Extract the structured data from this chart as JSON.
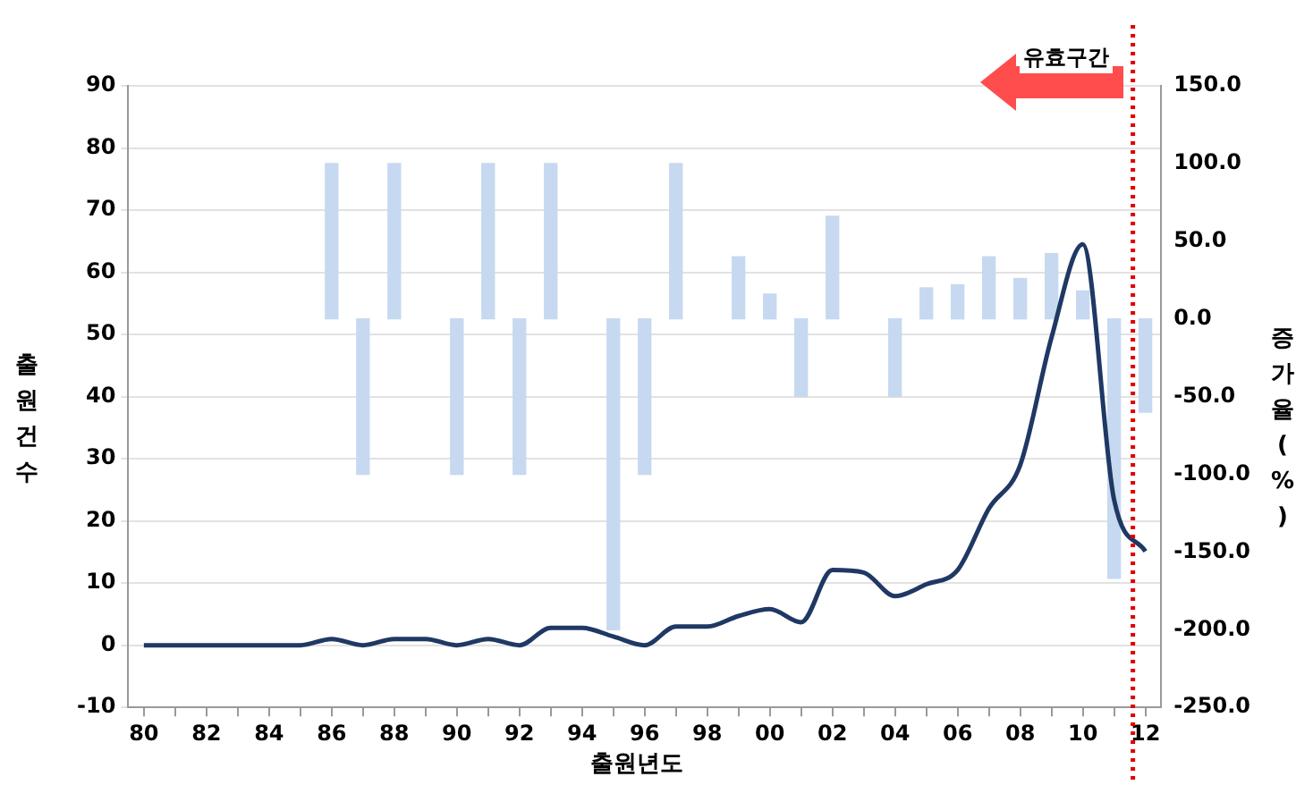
{
  "chart_data": {
    "type": "line",
    "xlabel": "출원년도",
    "ylabel": "출원건수",
    "y2label": "증가율(%)",
    "x": [
      1980,
      1981,
      1982,
      1983,
      1984,
      1985,
      1986,
      1987,
      1988,
      1989,
      1990,
      1991,
      1992,
      1993,
      1994,
      1995,
      1996,
      1997,
      1998,
      1999,
      2000,
      2001,
      2002,
      2003,
      2004,
      2005,
      2006,
      2007,
      2008,
      2009,
      2010,
      2011,
      2012
    ],
    "series": [
      {
        "type": "bar",
        "axis": "y2",
        "color": "#c6d9f0",
        "values": [
          null,
          null,
          null,
          null,
          null,
          null,
          100,
          -100,
          100,
          null,
          -100,
          100,
          -100,
          100,
          null,
          -200,
          -100,
          100,
          null,
          40,
          16,
          -50,
          66,
          null,
          -50,
          20,
          22,
          40,
          26,
          42,
          18,
          -167,
          -60
        ]
      },
      {
        "color": "#1f3864",
        "values": [
          0,
          0,
          0,
          0,
          0,
          0,
          1,
          0,
          1,
          1,
          0,
          1,
          0,
          2.8,
          2.8,
          1.4,
          0,
          3,
          3,
          4.7,
          5.8,
          3.7,
          12.1,
          11.7,
          7.9,
          9.8,
          12.1,
          22,
          29,
          49.5,
          64.5,
          23.4,
          15.1
        ]
      }
    ],
    "xlim": [
      1979.5,
      2012.5
    ],
    "xticks": [
      {
        "value": 1980,
        "label": "80"
      },
      {
        "value": 1981,
        "label": null
      },
      {
        "value": 1982,
        "label": "82"
      },
      {
        "value": 1983,
        "label": null
      },
      {
        "value": 1984,
        "label": "84"
      },
      {
        "value": 1985,
        "label": null
      },
      {
        "value": 1986,
        "label": "86"
      },
      {
        "value": 1987,
        "label": null
      },
      {
        "value": 1988,
        "label": "88"
      },
      {
        "value": 1989,
        "label": null
      },
      {
        "value": 1990,
        "label": "90"
      },
      {
        "value": 1991,
        "label": null
      },
      {
        "value": 1992,
        "label": "92"
      },
      {
        "value": 1993,
        "label": null
      },
      {
        "value": 1994,
        "label": "94"
      },
      {
        "value": 1995,
        "label": null
      },
      {
        "value": 1996,
        "label": "96"
      },
      {
        "value": 1997,
        "label": null
      },
      {
        "value": 1998,
        "label": "98"
      },
      {
        "value": 1999,
        "label": null
      },
      {
        "value": 2000,
        "label": "00"
      },
      {
        "value": 2001,
        "label": null
      },
      {
        "value": 2002,
        "label": "02"
      },
      {
        "value": 2003,
        "label": null
      },
      {
        "value": 2004,
        "label": "04"
      },
      {
        "value": 2005,
        "label": null
      },
      {
        "value": 2006,
        "label": "06"
      },
      {
        "value": 2007,
        "label": null
      },
      {
        "value": 2008,
        "label": "08"
      },
      {
        "value": 2009,
        "label": null
      },
      {
        "value": 2010,
        "label": "10"
      },
      {
        "value": 2011,
        "label": null
      },
      {
        "value": 2012,
        "label": "12"
      }
    ],
    "ylim": [
      -10,
      90
    ],
    "yticks": [
      -10,
      0,
      10,
      20,
      30,
      40,
      50,
      60,
      70,
      80,
      90
    ],
    "y2lim": [
      -250,
      150
    ],
    "y2ticks": [
      {
        "value": -250,
        "label": "-250.0"
      },
      {
        "value": -200,
        "label": "-200.0"
      },
      {
        "value": -150,
        "label": "-150.0"
      },
      {
        "value": -100,
        "label": "-100.0"
      },
      {
        "value": -50,
        "label": "-50.0"
      },
      {
        "value": 0,
        "label": "0.0"
      },
      {
        "value": 50,
        "label": "50.0"
      },
      {
        "value": 100,
        "label": "100.0"
      },
      {
        "value": 150,
        "label": "150.0"
      }
    ],
    "ref_lines": [
      {
        "axis": "x",
        "value": 2011.6,
        "color": "#e00000",
        "line_style": "dotted"
      }
    ],
    "annotations": [
      "유효구간"
    ],
    "grid": "y",
    "legend": false,
    "marker": "none",
    "line_style": "solid"
  }
}
